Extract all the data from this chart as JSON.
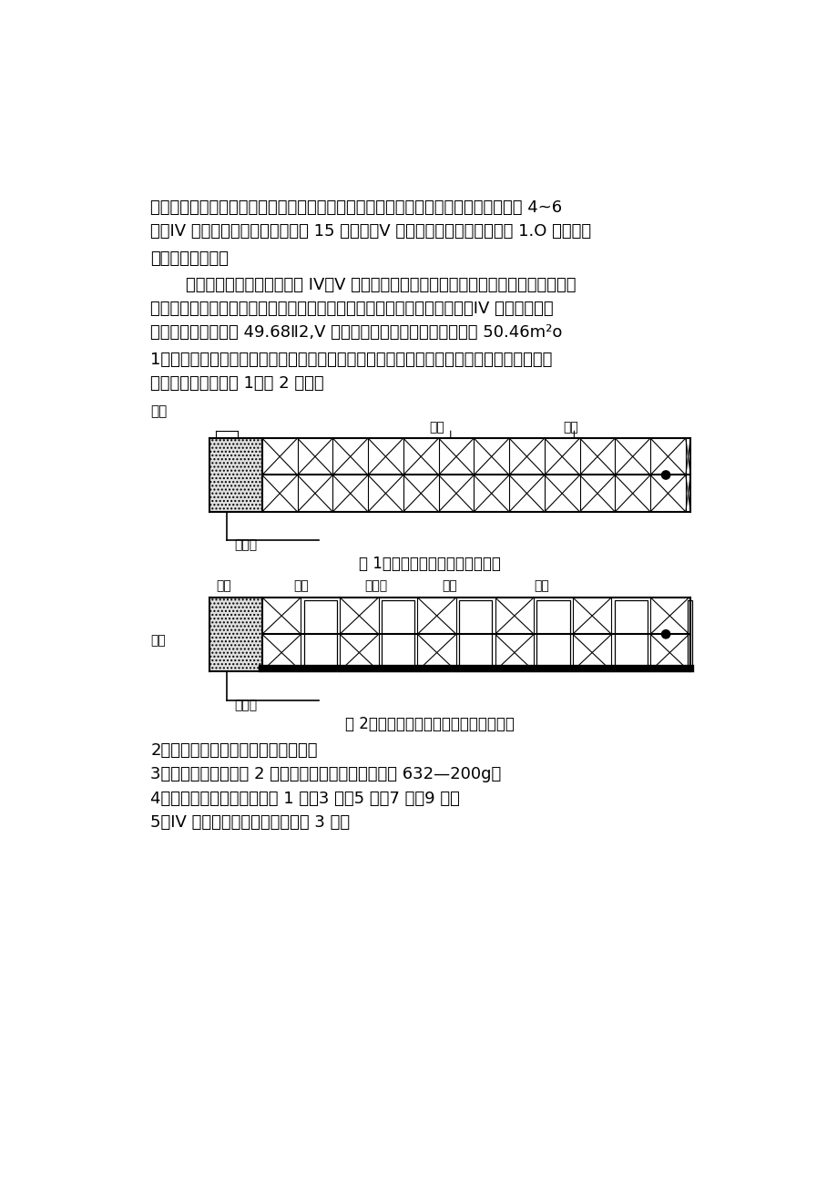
{
  "bg_color": "#ffffff",
  "text_color": "#000000",
  "para1_line1": "施工，钻爆法开挖，挖机扒碴，装载机装碴、自卸汽车运碴至洞外。上台阶长度控制在 4~6",
  "para1_line2": "米，IV 级围岩开挖循环进尺控制在 15 米以内，V 级围岩开挖循环进尺控制在 1.O 米以内。",
  "heading": "四、爆破方案设计",
  "para2_line1": "马家沟斜井施工段内主要为 IV、V 级围岩，开挖爆破设计的原则是：采用光面爆破，以",
  "para2_line2": "尽可能减少对围岩的扰动，维护围岩自身的稳定性，达到良好的轮廓成型。IV 级围岩上、下",
  "para2_line3": "台阶开挖断面面积为 49.68Ⅱ2,V 级围岩上、下台阶开挖断面面积为 50.46m²o",
  "item1_line1": "1、采用楔形掏槽方式，周边眼采用小药量间隔不耦合装药结构，其他眼采用连续不耦合装药",
  "item1_line2": "结构。装药结构如图 1、图 2 所示：",
  "label_paoni": "泡泥",
  "label_yaojuan": "药卷",
  "label_leiguan": "雷管",
  "label_daobaoGuan": "导爆管",
  "caption1": "图 1：连续不耦合装药结构示意图",
  "label_paoni2": "泡泥",
  "label_zhupian": "竹片",
  "label_daobao": "导爆索",
  "label_yaojuan2": "药卷",
  "label_leiguan2": "雷管",
  "label_daobaoGuan2": "导爆管",
  "caption2": "图 2：周边眼间隔不耦合装药结构示意图",
  "item2": "2、起爆方式采用电力起爆方式起爆。",
  "item3": "3、爆破所用炸药采用 2 号岩石乳化炸药，炸药规格为 632—200g。",
  "item4": "4、导爆管雷管所选用段数有 1 段、3 段、5 段、7 段、9 段。",
  "item5": "5、IV 级围岩开挖爆破设计图如图 3 所示"
}
